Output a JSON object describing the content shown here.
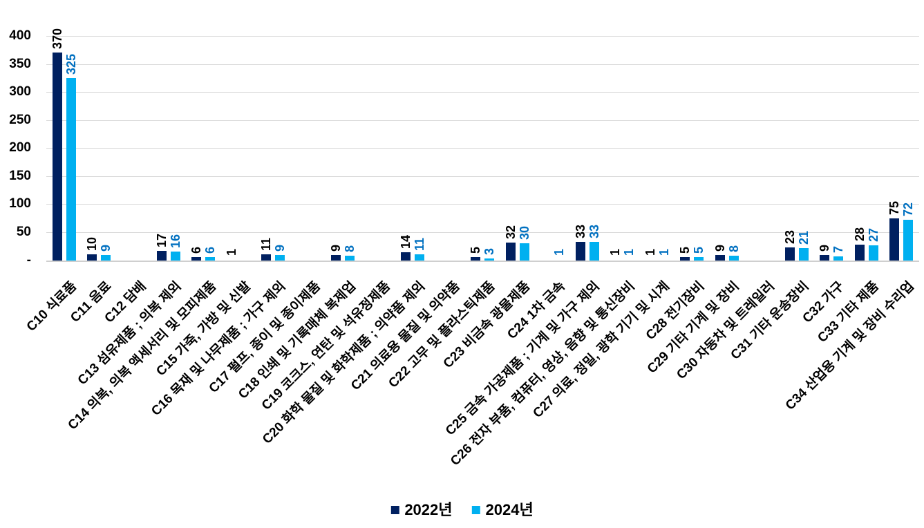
{
  "chart_data": {
    "type": "bar",
    "title": "",
    "xlabel": "",
    "ylabel": "",
    "categories": [
      "C10 식료품",
      "C11 음료",
      "C12 담배",
      "C13 섬유제품 ; 의복 제외",
      "C14 의복, 의복 액세서리 및 모피제품",
      "C15 가죽, 가방 및 신발",
      "C16 목재 및 나무제품 ; 가구 제외",
      "C17 펄프, 종이 및 종이제품",
      "C18 인쇄 및 기록매체 복제업",
      "C19 코크스, 연탄 및 석유정제품",
      "C20 화학 물질 및 화학제품 ; 의약품 제외",
      "C21 의료용 물질 및 의약품",
      "C22 고무 및 플라스틱제품",
      "C23 비금속 광물제품",
      "C24 1차 금속",
      "C25 금속 가공제품 ; 기계 및 가구 제외",
      "C26 전자 부품, 컴퓨터, 영상, 음향 및 통신장비",
      "C27 의료, 정밀, 광학 기기 및 시계",
      "C28 전기장비",
      "C29 기타 기계 및 장비",
      "C30 자동차 및 트레일러",
      "C31 기타 운송장비",
      "C32 가구",
      "C33 기타 제품",
      "C34 산업용 기계 및 장비 수리업"
    ],
    "series": [
      {
        "name": "2022년",
        "color": "#002060",
        "label_color": "#000000",
        "values": [
          370,
          10,
          null,
          17,
          6,
          1,
          11,
          null,
          9,
          null,
          14,
          null,
          5,
          32,
          null,
          33,
          1,
          1,
          5,
          9,
          null,
          23,
          9,
          28,
          75
        ]
      },
      {
        "name": "2024년",
        "color": "#00B0F0",
        "label_color": "#0070C0",
        "values": [
          325,
          9,
          null,
          16,
          6,
          null,
          9,
          null,
          8,
          null,
          11,
          null,
          3,
          30,
          1,
          33,
          1,
          1,
          5,
          8,
          null,
          21,
          7,
          27,
          72
        ]
      }
    ],
    "y_axis": {
      "min": 0,
      "max": 400,
      "tick_interval": 50,
      "tick_labels": [
        "400",
        "350",
        "300",
        "250",
        "200",
        "150",
        "100",
        "50",
        "-"
      ]
    },
    "grid": true,
    "data_labels": "rotated-vertical",
    "category_label_rotation_deg": -45,
    "legend": {
      "position": "bottom",
      "labels": [
        "2022년",
        "2024년"
      ]
    },
    "colors": {
      "gridline": "#D9D9D9",
      "axis_line": "#CFCFCF",
      "background": "#FFFFFF"
    }
  }
}
